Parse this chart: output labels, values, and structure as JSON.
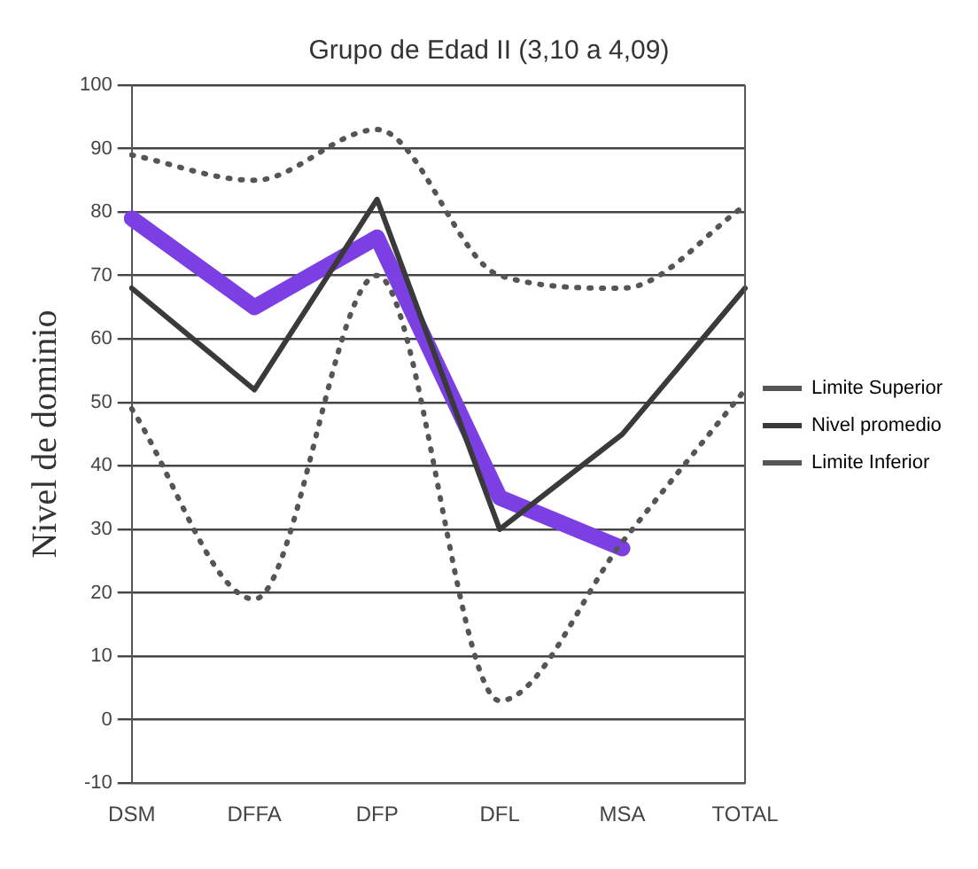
{
  "chart_data": {
    "type": "line",
    "title": "Grupo de Edad II (3,10 a 4,09)",
    "ylabel": "Nivel de dominio",
    "categories": [
      "DSM",
      "DFFA",
      "DFP",
      "DFL",
      "MSA",
      "TOTAL"
    ],
    "ylim": [
      -10,
      100
    ],
    "yticks": [
      -10,
      0,
      10,
      20,
      30,
      40,
      50,
      60,
      70,
      80,
      90,
      100
    ],
    "grid": "y",
    "legend": "right",
    "marker": "none",
    "series": [
      {
        "name": "Limite Superior",
        "color": "#555555",
        "line_style": "dotted",
        "values": [
          89,
          85,
          93,
          70,
          68,
          81
        ]
      },
      {
        "name": "Nivel promedio",
        "color": "#3a3a3a",
        "line_style": "solid",
        "values": [
          68,
          52,
          82,
          30,
          45,
          68
        ]
      },
      {
        "name": "Limite Inferior",
        "color": "#555555",
        "line_style": "dotted",
        "values": [
          49,
          19,
          70,
          3,
          28,
          52
        ]
      },
      {
        "color": "#7b3fe4",
        "line_style": "solid",
        "values": [
          79,
          65,
          76,
          35,
          27,
          null
        ]
      }
    ]
  }
}
